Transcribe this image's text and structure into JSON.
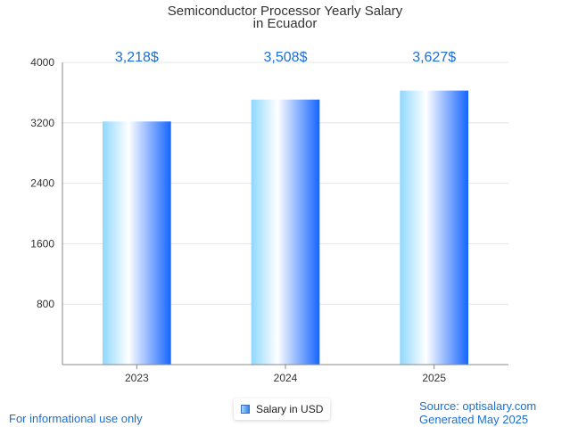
{
  "chart_data": {
    "type": "bar",
    "title": [
      "Semiconductor Processor Yearly Salary",
      "in Ecuador"
    ],
    "categories": [
      "2023",
      "2024",
      "2025"
    ],
    "series": [
      {
        "name": "Salary in USD",
        "values": [
          3218,
          3508,
          3627
        ]
      }
    ],
    "data_labels": [
      "3,218$",
      "3,508$",
      "3,627$"
    ],
    "ylim": [
      0,
      4000
    ],
    "yticks": [
      800,
      1600,
      2400,
      3200,
      4000
    ],
    "grid": true,
    "legend_position": "bottom-center",
    "colors": {
      "bar_left": "#8fd8ff",
      "bar_mid": "#ffffff",
      "bar_right": "#1565ff",
      "label": "#1a6fd6",
      "grid": "#e4e4e4",
      "axis": "#888888"
    }
  },
  "footer": {
    "note": "For informational use only",
    "source": "Source: optisalary.com",
    "generated": "Generated May 2025"
  }
}
